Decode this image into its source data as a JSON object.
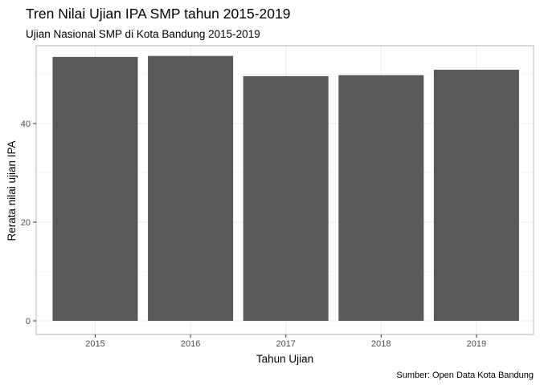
{
  "chart_data": {
    "type": "bar",
    "title": "Tren Nilai Ujian IPA SMP tahun 2015-2019",
    "subtitle": "Ujian Nasional SMP di Kota Bandung 2015-2019",
    "caption": "Sumber: Open Data Kota Bandung",
    "xlabel": "Tahun Ujian",
    "ylabel": "Rerata nilai ujian IPA",
    "categories": [
      "2015",
      "2016",
      "2017",
      "2018",
      "2019"
    ],
    "values": [
      53.5,
      53.7,
      49.6,
      49.8,
      50.9
    ],
    "ylim": [
      0,
      56.4
    ],
    "yticks": [
      0,
      20,
      40
    ],
    "ytick_labels": [
      "0",
      "20",
      "40"
    ],
    "grid": true,
    "colors": {
      "bar": "#595959",
      "grid": "#ebebeb",
      "panel_border": "#b3b3b3",
      "text": "#000000",
      "tick_text": "#4d4d4d"
    }
  }
}
